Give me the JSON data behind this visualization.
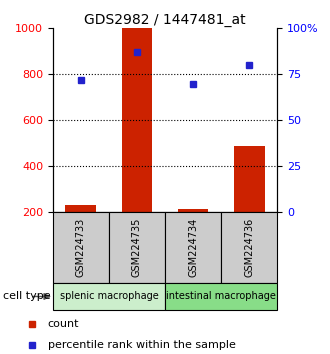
{
  "title": "GDS2982 / 1447481_at",
  "samples": [
    "GSM224733",
    "GSM224735",
    "GSM224734",
    "GSM224736"
  ],
  "counts": [
    230,
    1000,
    215,
    490
  ],
  "percentiles": [
    72,
    87,
    70,
    80
  ],
  "bar_color": "#cc2200",
  "dot_color": "#2222cc",
  "ylim_left": [
    200,
    1000
  ],
  "ylim_right": [
    0,
    100
  ],
  "yticks_left": [
    200,
    400,
    600,
    800,
    1000
  ],
  "yticks_right": [
    0,
    25,
    50,
    75,
    100
  ],
  "ytick_labels_right": [
    "0",
    "25",
    "50",
    "75",
    "100%"
  ],
  "grid_pct": [
    25,
    50,
    75
  ],
  "cell_types": [
    {
      "label": "splenic macrophage",
      "indices": [
        0,
        1
      ],
      "color": "#cceecc"
    },
    {
      "label": "intestinal macrophage",
      "indices": [
        2,
        3
      ],
      "color": "#88dd88"
    }
  ],
  "legend_count_label": "count",
  "legend_pct_label": "percentile rank within the sample",
  "cell_type_label": "cell type",
  "bg_color": "#ffffff",
  "sample_box_color": "#cccccc"
}
